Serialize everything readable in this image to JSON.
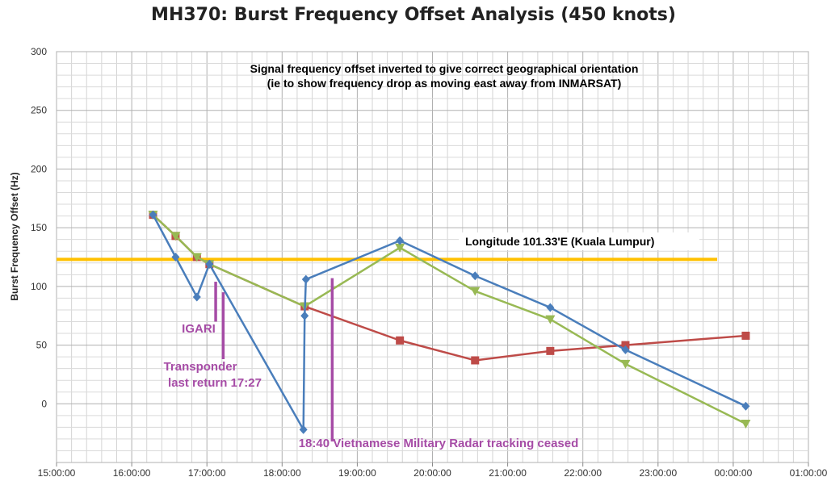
{
  "chart_data": {
    "type": "line",
    "title": "MH370: Burst Frequency Offset Analysis (450 knots)",
    "ylabel": "Burst Frequency Offset (Hz)",
    "xlabel": "",
    "ylim": [
      -50,
      300
    ],
    "yticks": [
      0,
      50,
      100,
      150,
      200,
      250,
      300
    ],
    "ytick_labels": [
      "0",
      "50",
      "100",
      "150",
      "200",
      "250",
      "300"
    ],
    "xlim_hours": [
      15.0,
      25.0
    ],
    "xtick_labels": [
      "15:00:00",
      "16:00:00",
      "17:00:00",
      "18:00:00",
      "19:00:00",
      "20:00:00",
      "21:00:00",
      "22:00:00",
      "23:00:00",
      "00:00:00",
      "01:00:00"
    ],
    "grid": true,
    "series": [
      {
        "name": "",
        "color": "#4a7ebb",
        "marker": "diamond",
        "points": [
          {
            "x": "16:17",
            "y": 161
          },
          {
            "x": "16:35",
            "y": 125
          },
          {
            "x": "16:52",
            "y": 91
          },
          {
            "x": "17:02",
            "y": 119
          },
          {
            "x": "18:17",
            "y": -22
          },
          {
            "x": "18:18",
            "y": 75
          },
          {
            "x": "18:19",
            "y": 106
          },
          {
            "x": "19:34",
            "y": 139
          },
          {
            "x": "20:34",
            "y": 109
          },
          {
            "x": "21:34",
            "y": 82
          },
          {
            "x": "22:34",
            "y": 46
          },
          {
            "x": "00:10",
            "y": -2
          }
        ]
      },
      {
        "name": "",
        "color": "#be4b48",
        "marker": "square",
        "points": [
          {
            "x": "16:17",
            "y": 161
          },
          {
            "x": "16:35",
            "y": 143
          },
          {
            "x": "16:52",
            "y": 125
          },
          {
            "x": "17:02",
            "y": 119
          },
          {
            "x": "18:18",
            "y": 83
          },
          {
            "x": "19:34",
            "y": 54
          },
          {
            "x": "20:34",
            "y": 37
          },
          {
            "x": "21:34",
            "y": 45
          },
          {
            "x": "22:34",
            "y": 50
          },
          {
            "x": "00:10",
            "y": 58
          }
        ]
      },
      {
        "name": "",
        "color": "#98b954",
        "marker": "triangle-down",
        "points": [
          {
            "x": "16:17",
            "y": 161
          },
          {
            "x": "16:35",
            "y": 143
          },
          {
            "x": "16:52",
            "y": 125
          },
          {
            "x": "17:02",
            "y": 119
          },
          {
            "x": "18:18",
            "y": 83
          },
          {
            "x": "19:34",
            "y": 133
          },
          {
            "x": "20:34",
            "y": 96
          },
          {
            "x": "21:34",
            "y": 72
          },
          {
            "x": "22:34",
            "y": 34
          },
          {
            "x": "00:10",
            "y": -17
          }
        ]
      }
    ],
    "reference_line": {
      "label": "Longitude 101.33'E (Kuala Lumpur)",
      "y": 123,
      "color": "#ffc000"
    },
    "markers": [
      {
        "x": "17:07",
        "y_range": [
          70,
          104
        ]
      },
      {
        "x": "17:13",
        "y_range": [
          38,
          95
        ]
      },
      {
        "x": "18:40",
        "y_range": [
          -32,
          107
        ]
      }
    ],
    "annotations": {
      "note_line1": "Signal frequency offset inverted to give correct geographical orientation",
      "note_line2": "(ie to show frequency drop as moving east away from INMARSAT)",
      "igari": "IGARI",
      "transponder_line1": "Transponder",
      "transponder_line2": "last return 17:27",
      "radar": "18:40 Vietnamese Military Radar tracking ceased"
    },
    "annotation_color": "#a64ca6"
  }
}
